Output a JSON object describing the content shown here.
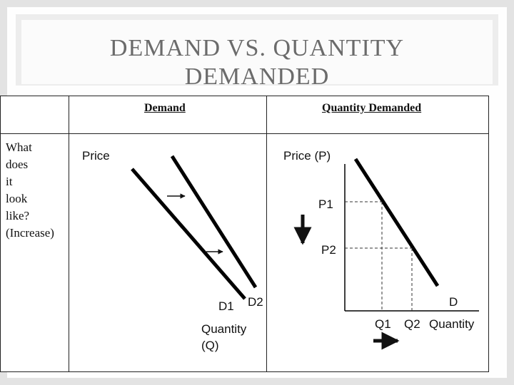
{
  "slide": {
    "title_line1": "DEMAND VS. QUANTITY",
    "title_line2": "DEMANDED"
  },
  "table": {
    "col_demand": "Demand",
    "col_quantity_demanded": "Quantity Demanded",
    "row_label": [
      "What",
      "does",
      "it",
      "look",
      "like?",
      "(Increase)"
    ]
  },
  "demand_diagram": {
    "y_label": "Price",
    "x_label_line1": "Quantity",
    "x_label_line2": "(Q)",
    "curve1_label": "D1",
    "curve2_label": "D2"
  },
  "qd_diagram": {
    "y_label": "Price (P)",
    "p1_label": "P1",
    "p2_label": "P2",
    "curve_label": "D",
    "q1_label": "Q1",
    "q2_label": "Q2",
    "x_label": "Quantity"
  }
}
